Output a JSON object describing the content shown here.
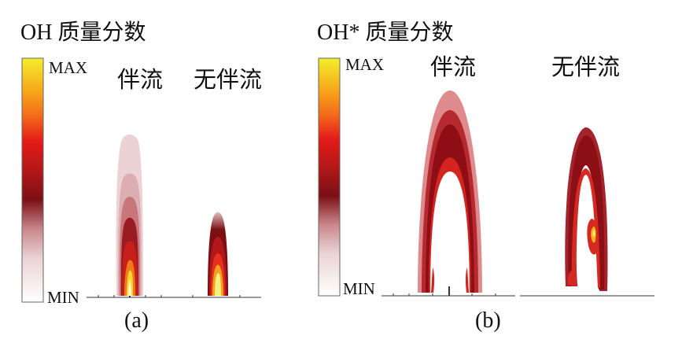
{
  "panel_a": {
    "title": "OH 质量分数",
    "colorbar": {
      "max_label": "MAX",
      "min_label": "MIN"
    },
    "left_label": "伴流",
    "right_label": "无伴流",
    "caption": "(a)"
  },
  "panel_b": {
    "title": "OH* 质量分数",
    "colorbar": {
      "max_label": "MAX",
      "min_label": "MIN"
    },
    "left_label": "伴流",
    "right_label": "无伴流",
    "caption": "(b)"
  },
  "colors": {
    "colorbar_stops": [
      "#ffffff",
      "#c9868b",
      "#7a1015",
      "#e41a18",
      "#f7a419",
      "#f2ef2c"
    ],
    "flame_light": "#e6c3c5",
    "flame_mid": "#c65d63",
    "flame_dark": "#8e1219",
    "flame_core": "#d8261f",
    "flame_hot": "#f6e62a"
  }
}
